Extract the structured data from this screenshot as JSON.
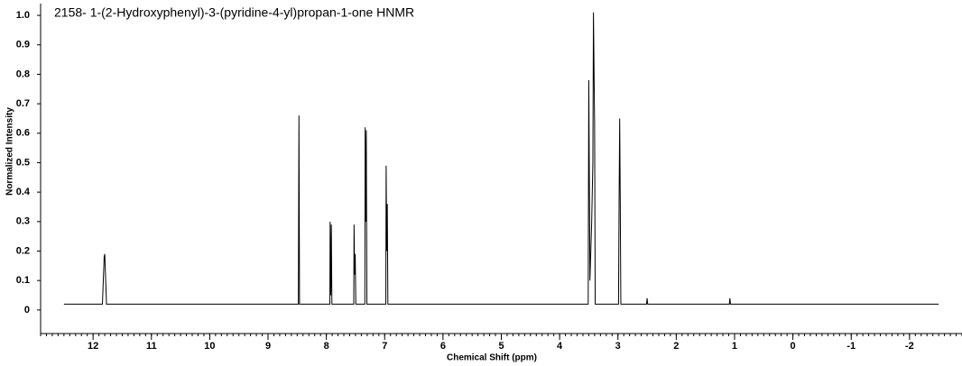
{
  "chart_data": {
    "type": "line",
    "title": "2158- 1-(2-Hydroxyphenyl)-3-(pyridine-4-yl)propan-1-one HNMR",
    "x_label": "Chemical Shift (ppm)",
    "y_label": "Normalized Intensity",
    "xlim": [
      12.9,
      -2.9
    ],
    "ylim": [
      -0.08,
      1.04
    ],
    "xticks": [
      12,
      11,
      10,
      9,
      8,
      7,
      6,
      5,
      4,
      3,
      2,
      1,
      0,
      -1,
      -2
    ],
    "yticks": [
      0,
      0.1,
      0.2,
      0.3,
      0.4,
      0.5,
      0.6,
      0.7,
      0.8,
      0.9,
      {
        "value": 1,
        "label": "1.0"
      }
    ],
    "series": [
      {
        "color": "#000000",
        "x": [
          12.5,
          11.84,
          11.81,
          11.8,
          11.77,
          8.48,
          8.47,
          8.46,
          7.94,
          7.935,
          7.925,
          7.915,
          7.905,
          7.53,
          7.525,
          7.515,
          7.505,
          7.495,
          7.34,
          7.335,
          7.325,
          7.315,
          7.305,
          6.98,
          6.975,
          6.965,
          6.955,
          6.945,
          3.51,
          3.5,
          3.48,
          3.45,
          3.43,
          3.42,
          3.4,
          3.39,
          2.99,
          2.98,
          2.97,
          2.96,
          2.95,
          2.51,
          2.5,
          2.49,
          1.09,
          1.08,
          1.07,
          -2.5
        ],
        "values": [
          0.02,
          0.02,
          0.18,
          0.19,
          0.02,
          0.02,
          0.66,
          0.02,
          0.02,
          0.3,
          0.05,
          0.29,
          0.02,
          0.02,
          0.29,
          0.12,
          0.19,
          0.02,
          0.02,
          0.62,
          0.3,
          0.61,
          0.02,
          0.02,
          0.49,
          0.2,
          0.36,
          0.02,
          0.02,
          0.78,
          0.1,
          0.3,
          0.5,
          1.01,
          0.63,
          0.02,
          0.02,
          0.37,
          0.65,
          0.36,
          0.02,
          0.02,
          0.04,
          0.02,
          0.02,
          0.04,
          0.02,
          0.02
        ]
      }
    ]
  }
}
